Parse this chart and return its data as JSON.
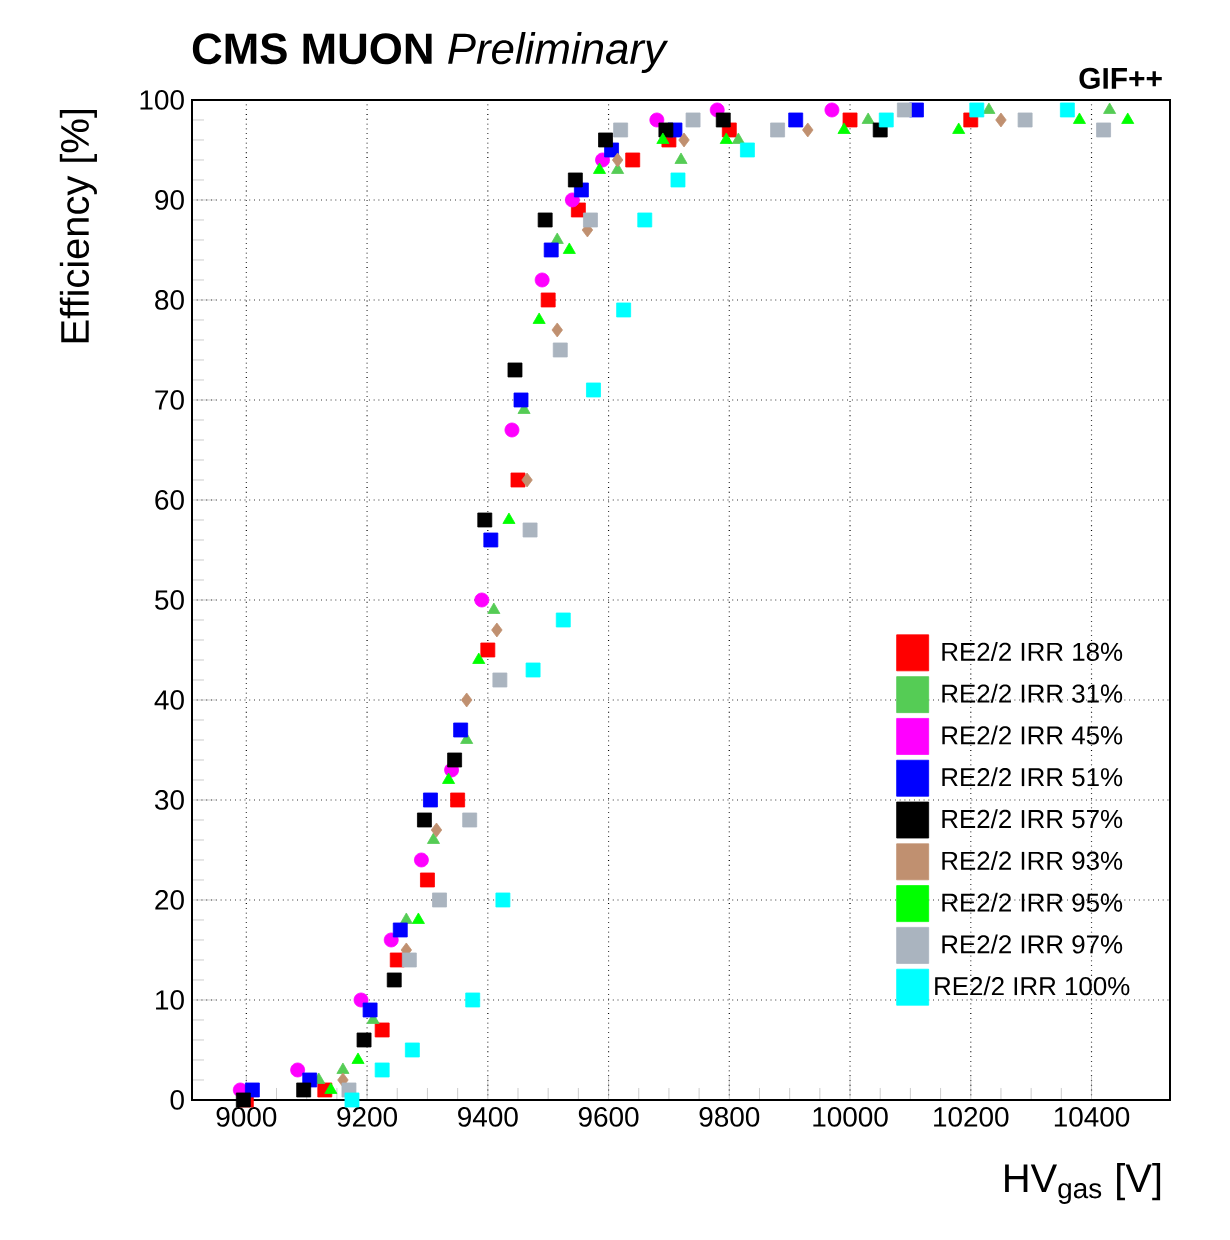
{
  "chart_data": {
    "type": "scatter",
    "title": "**CMS MUON** *Preliminary*",
    "annotations": [
      "GIF++"
    ],
    "xlabel": "HV$_{gas}$ [V]",
    "ylabel": "Efficiency [%]",
    "xlim": [
      8910,
      10530
    ],
    "ylim": [
      0,
      100
    ],
    "xticks": [
      9000,
      9200,
      9400,
      9600,
      9800,
      10000,
      10200,
      10400
    ],
    "yticks": [
      0,
      10,
      20,
      30,
      40,
      50,
      60,
      70,
      80,
      90,
      100
    ],
    "grid": true,
    "legend": "bottom right",
    "series": [
      {
        "name": "RE2/2 IRR 18%",
        "color": "#ff0000",
        "marker": "square",
        "x": [
          9000,
          9130,
          9225,
          9250,
          9300,
          9350,
          9400,
          9450,
          9500,
          9550,
          9640,
          9700,
          9800,
          10000,
          10200
        ],
        "values": [
          0,
          1,
          7,
          14,
          22,
          30,
          45,
          62,
          80,
          89,
          94,
          96,
          97,
          98,
          98
        ]
      },
      {
        "name": "RE2/2 IRR 31%",
        "color": "#55cc55",
        "marker": "triangle",
        "x": [
          9120,
          9160,
          9210,
          9265,
          9310,
          9365,
          9410,
          9460,
          9515,
          9615,
          9720,
          9815,
          10030,
          10230,
          10430
        ],
        "values": [
          2,
          3,
          8,
          18,
          26,
          36,
          49,
          69,
          86,
          93,
          94,
          96,
          98,
          99,
          99
        ]
      },
      {
        "name": "RE2/2 IRR 45%",
        "color": "#ff00ff",
        "marker": "circle",
        "x": [
          8990,
          9085,
          9190,
          9240,
          9290,
          9340,
          9390,
          9440,
          9490,
          9540,
          9590,
          9680,
          9780,
          9970
        ],
        "values": [
          1,
          3,
          10,
          16,
          24,
          33,
          50,
          67,
          82,
          90,
          94,
          98,
          99,
          99
        ]
      },
      {
        "name": "RE2/2 IRR 51%",
        "color": "#0000ff",
        "marker": "square",
        "x": [
          9010,
          9105,
          9205,
          9255,
          9305,
          9355,
          9405,
          9455,
          9505,
          9555,
          9605,
          9710,
          9910,
          10110
        ],
        "values": [
          1,
          2,
          9,
          17,
          30,
          37,
          56,
          70,
          85,
          91,
          95,
          97,
          98,
          99
        ]
      },
      {
        "name": "RE2/2 IRR 57%",
        "color": "#000000",
        "marker": "square",
        "x": [
          8995,
          9095,
          9195,
          9245,
          9295,
          9345,
          9395,
          9445,
          9495,
          9545,
          9595,
          9695,
          9790,
          10050
        ],
        "values": [
          0,
          1,
          6,
          12,
          28,
          34,
          58,
          73,
          88,
          92,
          96,
          97,
          98,
          97
        ]
      },
      {
        "name": "RE2/2 IRR 93%",
        "color": "#c09070",
        "marker": "diamond",
        "x": [
          9160,
          9265,
          9315,
          9365,
          9415,
          9465,
          9515,
          9565,
          9615,
          9725,
          9930,
          10250
        ],
        "values": [
          2,
          15,
          27,
          40,
          47,
          62,
          77,
          87,
          94,
          96,
          97,
          98
        ]
      },
      {
        "name": "RE2/2 IRR 95%",
        "color": "#00ff00",
        "marker": "triangle",
        "x": [
          9140,
          9185,
          9285,
          9335,
          9385,
          9435,
          9485,
          9535,
          9585,
          9690,
          9795,
          9990,
          10180,
          10380,
          10460
        ],
        "values": [
          1,
          4,
          18,
          32,
          44,
          58,
          78,
          85,
          93,
          96,
          96,
          97,
          97,
          98,
          98
        ]
      },
      {
        "name": "RE2/2 IRR 97%",
        "color": "#aab4bf",
        "marker": "square",
        "x": [
          9170,
          9270,
          9320,
          9370,
          9420,
          9470,
          9520,
          9570,
          9620,
          9740,
          9880,
          10090,
          10290,
          10420
        ],
        "values": [
          1,
          14,
          20,
          28,
          42,
          57,
          75,
          88,
          97,
          98,
          97,
          99,
          98,
          97
        ]
      },
      {
        "name": "RE2/2 IRR 100%",
        "color": "#00ffff",
        "marker": "square",
        "x": [
          9175,
          9225,
          9275,
          9375,
          9425,
          9475,
          9525,
          9575,
          9625,
          9660,
          9715,
          9830,
          10060,
          10210,
          10360
        ],
        "values": [
          0,
          3,
          5,
          10,
          20,
          43,
          48,
          71,
          79,
          88,
          92,
          95,
          98,
          99,
          99
        ]
      }
    ]
  }
}
